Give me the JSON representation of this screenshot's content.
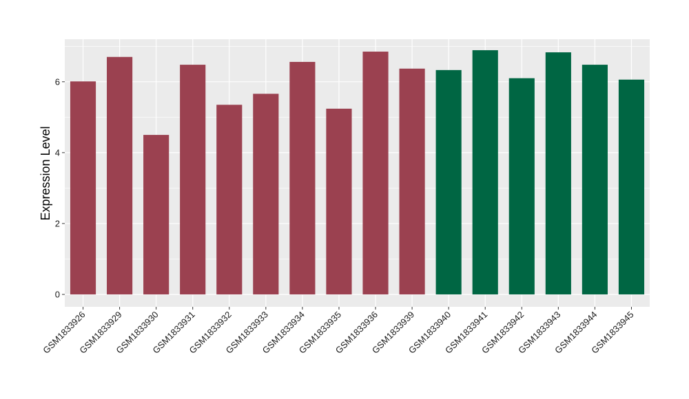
{
  "chart_data": {
    "type": "bar",
    "ylabel": "Expression Level",
    "xlabel": "",
    "title": "",
    "ylim": [
      -0.35,
      7.2
    ],
    "yticks": [
      0,
      2,
      4,
      6
    ],
    "grid": true,
    "legend": "none",
    "categories": [
      "GSM1833926",
      "GSM1833929",
      "GSM1833930",
      "GSM1833931",
      "GSM1833932",
      "GSM1833933",
      "GSM1833934",
      "GSM1833935",
      "GSM1833936",
      "GSM1833939",
      "GSM1833940",
      "GSM1833941",
      "GSM1833942",
      "GSM1833943",
      "GSM1833944",
      "GSM1833945"
    ],
    "values": [
      6.01,
      6.7,
      4.5,
      6.48,
      5.35,
      5.66,
      6.56,
      5.24,
      6.85,
      6.37,
      6.33,
      6.89,
      6.1,
      6.83,
      6.48,
      6.06
    ],
    "groups": [
      "A",
      "A",
      "A",
      "A",
      "A",
      "A",
      "A",
      "A",
      "A",
      "A",
      "B",
      "B",
      "B",
      "B",
      "B",
      "B"
    ],
    "group_colors": {
      "A": "#9b4150",
      "B": "#006643"
    },
    "panel_color": "#ebebeb",
    "grid_color": "#ffffff"
  }
}
